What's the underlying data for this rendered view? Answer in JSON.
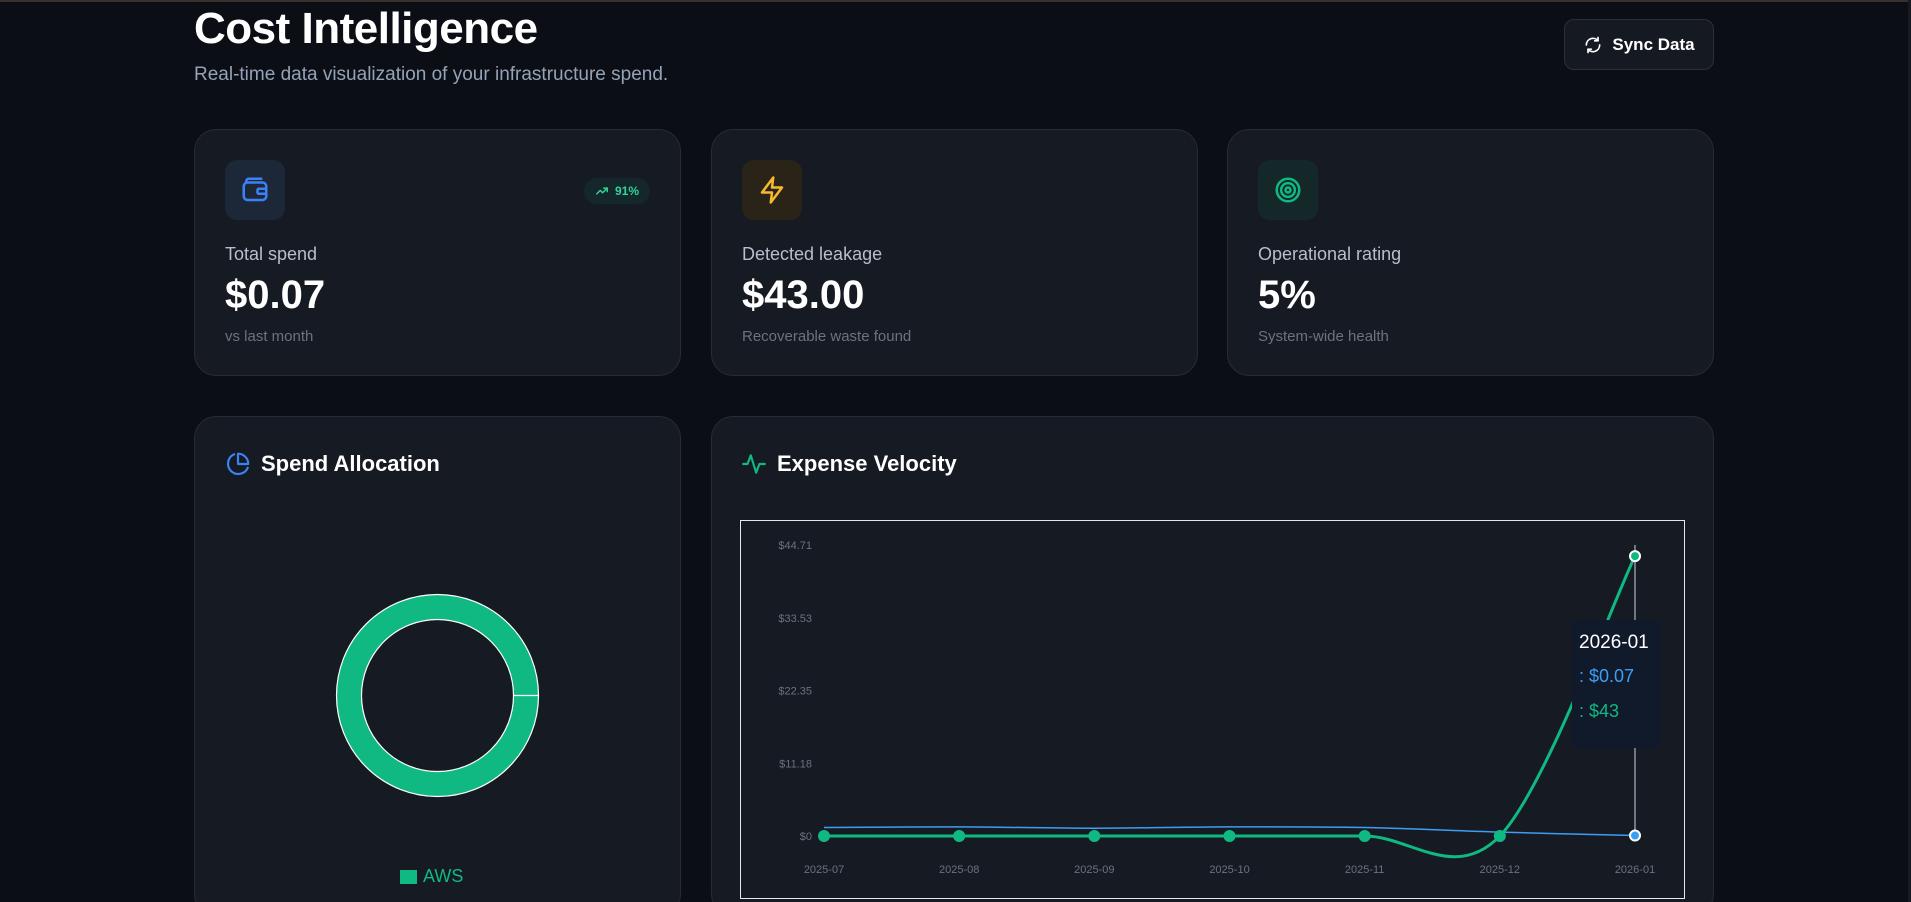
{
  "header": {
    "title": "Cost Intelligence",
    "subtitle": "Real-time data visualization of your infrastructure spend.",
    "sync_label": "Sync Data"
  },
  "stats": [
    {
      "label": "Total spend",
      "value": "$0.07",
      "sub": "vs last month",
      "badge": "91%",
      "icon": "wallet-icon",
      "color": "#3b82f6"
    },
    {
      "label": "Detected leakage",
      "value": "$43.00",
      "sub": "Recoverable waste found",
      "icon": "lightning-icon",
      "color": "#f5b82e"
    },
    {
      "label": "Operational rating",
      "value": "5%",
      "sub": "System-wide health",
      "icon": "target-icon",
      "color": "#10b981"
    }
  ],
  "allocation": {
    "title": "Spend Allocation",
    "legend": [
      "AWS"
    ]
  },
  "velocity": {
    "title": "Expense Velocity"
  },
  "chart_data": [
    {
      "type": "pie",
      "labels": [
        "AWS"
      ],
      "values": [
        100
      ],
      "colors": [
        "#10b981"
      ],
      "legend": "bottom"
    },
    {
      "type": "line",
      "categories": [
        "2025-07",
        "2025-08",
        "2025-09",
        "2025-10",
        "2025-11",
        "2025-12",
        "2026-01"
      ],
      "yticks": [
        "$0",
        "$11.18",
        "$22.35",
        "$33.53",
        "$44.71"
      ],
      "ylim": [
        0,
        44.71
      ],
      "series": [
        {
          "values": [
            1.3,
            1.4,
            1.2,
            1.4,
            1.3,
            0.6,
            0.07
          ],
          "color": "#3b9ef5"
        },
        {
          "values": [
            0,
            0,
            0,
            0,
            0,
            0,
            43
          ],
          "color": "#10b981"
        }
      ],
      "tooltip": {
        "title": "2026-01",
        "lines": [
          ": $0.07",
          ": $43"
        ]
      }
    }
  ]
}
